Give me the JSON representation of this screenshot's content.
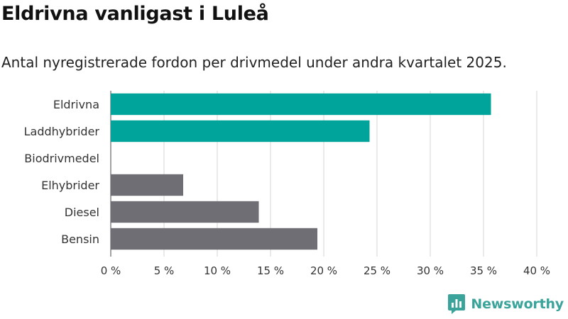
{
  "chart_data": {
    "type": "bar",
    "orientation": "horizontal",
    "title": "Eldrivna vanligast i Luleå",
    "subtitle": "Antal nyregistrerade fordon per drivmedel under andra kvartalet 2025.",
    "categories": [
      "Eldrivna",
      "Laddhybrider",
      "Biodrivmedel",
      "Elhybrider",
      "Diesel",
      "Bensin"
    ],
    "values": [
      35.7,
      24.3,
      0,
      6.8,
      13.9,
      19.4
    ],
    "value_unit": "%",
    "bar_colors": [
      "#00a49a",
      "#00a49a",
      "#00a49a",
      "#6f6e75",
      "#6f6e75",
      "#6f6e75"
    ],
    "xlim": [
      0,
      40
    ],
    "xticks": [
      0,
      5,
      10,
      15,
      20,
      25,
      30,
      35,
      40
    ],
    "xtick_labels": [
      "0 %",
      "5 %",
      "10 %",
      "15 %",
      "20 %",
      "25 %",
      "30 %",
      "35 %",
      "40 %"
    ],
    "xlabel": "",
    "ylabel": "",
    "grid": true
  },
  "branding": {
    "logo_text": "Newsworthy",
    "logo_color": "#3aa39a"
  }
}
